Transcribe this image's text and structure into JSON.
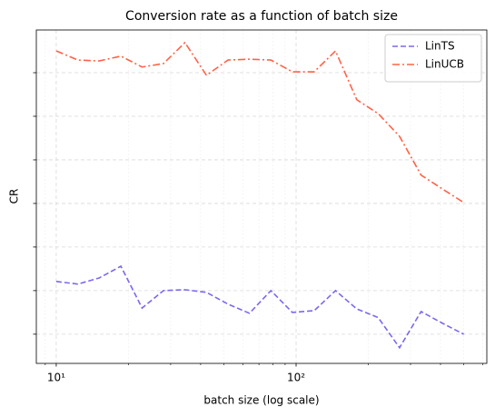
{
  "chart_data": {
    "type": "line",
    "title": "Conversion rate as a function of batch size",
    "xlabel": "batch size (log scale)",
    "ylabel": "CR",
    "x": [
      10,
      12.3,
      15.1,
      18.6,
      22.8,
      28,
      34.4,
      42.3,
      52,
      63.9,
      78.5,
      96.5,
      119,
      146,
      179,
      220,
      270,
      332,
      408,
      500
    ],
    "series": [
      {
        "name": "LinTS",
        "color": "#7b68ee",
        "dash": "6,3",
        "values": [
          2.21,
          2.15,
          2.29,
          2.56,
          1.6,
          2.0,
          2.02,
          1.96,
          1.69,
          1.48,
          2.0,
          1.5,
          1.54,
          2.0,
          1.58,
          1.38,
          0.69,
          1.52,
          1.25,
          1.0
        ]
      },
      {
        "name": "LinUCB",
        "color": "#ff6347",
        "dash": "8,3,2,3",
        "values": [
          7.5,
          7.29,
          7.27,
          7.38,
          7.13,
          7.21,
          7.69,
          6.94,
          7.29,
          7.31,
          7.29,
          7.02,
          7.02,
          7.5,
          6.38,
          6.06,
          5.54,
          4.65,
          4.33,
          4.02
        ]
      }
    ],
    "xscale": "log",
    "xlim": [
      8.26,
      624
    ],
    "xticks": [
      {
        "value": 10,
        "label": "10¹"
      },
      {
        "value": 100,
        "label": "10²"
      }
    ],
    "ylim": [
      0.33,
      7.98
    ],
    "yticks": [
      1,
      2,
      3,
      4,
      5,
      6,
      7
    ],
    "grid": true,
    "legend": "upper right"
  }
}
